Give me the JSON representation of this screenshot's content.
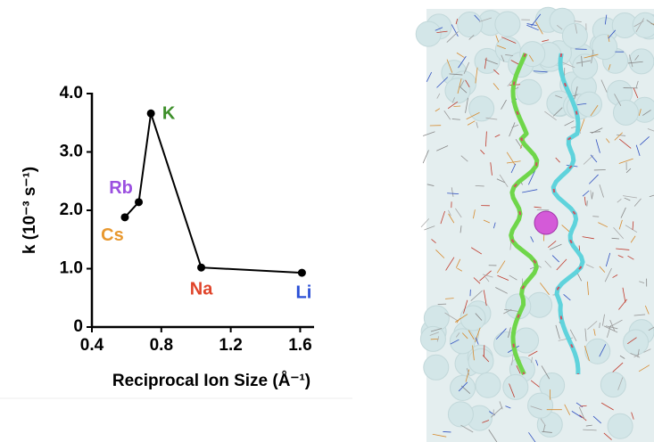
{
  "chart_data": {
    "type": "line",
    "x_label": "Reciprocal Ion Size (Å⁻¹)",
    "y_label": "k (10⁻³ s⁻¹)",
    "xlim": [
      0.4,
      1.68
    ],
    "xticks": [
      0.4,
      0.8,
      1.2,
      1.6
    ],
    "ylim": [
      0,
      4.0
    ],
    "yticks": [
      0,
      {
        "value": 1,
        "label": "1.0"
      },
      {
        "value": 2,
        "label": "2.0"
      },
      {
        "value": 3,
        "label": "3.0"
      },
      {
        "value": 4,
        "label": "4.0"
      }
    ],
    "grid": false,
    "series": [
      {
        "color": "#000000",
        "x": [
          0.59,
          0.67,
          0.74,
          1.03,
          1.61
        ],
        "values": [
          1.88,
          2.14,
          3.66,
          1.02,
          0.93
        ],
        "point_labels": [
          "Cs",
          "Rb",
          "K",
          "Na",
          "Li"
        ],
        "point_label_colors": [
          "#e8982f",
          "#9b4fe0",
          "#3d8f2a",
          "#e0452b",
          "#2a4fd6"
        ]
      }
    ]
  }
}
